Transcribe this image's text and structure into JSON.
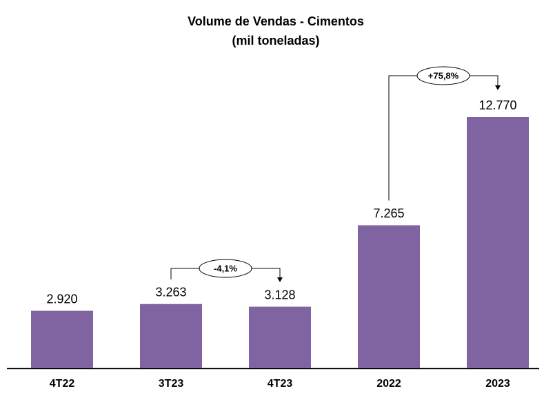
{
  "chart_data": {
    "type": "bar",
    "title": [
      "Volume de Vendas - Cimentos",
      "(mil toneladas)"
    ],
    "categories": [
      "4T22",
      "3T23",
      "4T23",
      "2022",
      "2023"
    ],
    "values": [
      2920,
      3263,
      3128,
      7265,
      12770
    ],
    "value_labels": [
      "2.920",
      "3.263",
      "3.128",
      "7.265",
      "12.770"
    ],
    "color": "#8064a2",
    "annotations": [
      "-4,1%",
      "+75,8%"
    ]
  }
}
